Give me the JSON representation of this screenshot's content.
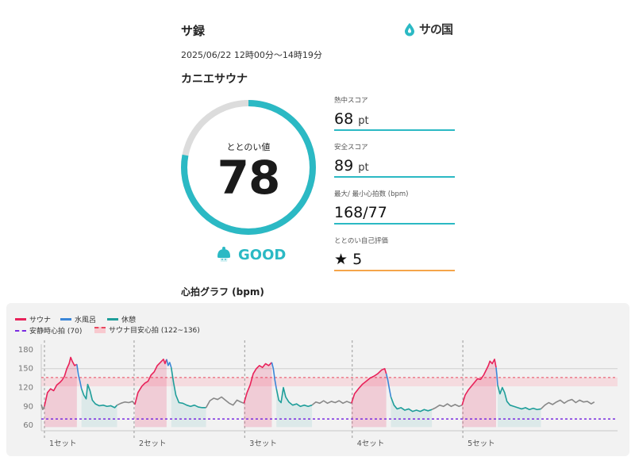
{
  "header": {
    "title": "サ録",
    "brand": "サの国",
    "session_time": "2025/06/22 12時00分〜14時19分",
    "facility": "カニエサウナ"
  },
  "score": {
    "caption": "ととのい値",
    "value": "78",
    "max": 100,
    "rating": "GOOD"
  },
  "stats": [
    {
      "label": "熱中スコア",
      "value": "68",
      "unit": "pt",
      "icon": ""
    },
    {
      "label": "安全スコア",
      "value": "89",
      "unit": "pt",
      "icon": ""
    },
    {
      "label": "最大/ 最小心拍数 (bpm)",
      "value": "168/77",
      "unit": "",
      "icon": ""
    },
    {
      "label": "ととのい自己評価",
      "value": "5",
      "unit": "",
      "icon": "★"
    }
  ],
  "graph": {
    "title": "心拍グラフ (bpm)",
    "legend": {
      "sauna": "サウナ",
      "cold_bath": "水風呂",
      "rest": "休憩",
      "resting_hr": "安静時心拍 (70)",
      "sauna_target": "サウナ目安心拍 (122~136)"
    }
  },
  "colors": {
    "accent": "#2bb9c4",
    "sauna": "#e8225a",
    "cold_bath": "#3a86d8",
    "rest": "#1f9e9a",
    "other": "#888888",
    "resting_line": "#7a2be0",
    "target_band": "#f8c9cf",
    "self_eval_line": "#f5a54a"
  },
  "chart_data": {
    "type": "line",
    "ylim": [
      55,
      185
    ],
    "yticks": [
      60,
      90,
      120,
      150,
      180
    ],
    "xmax": 745,
    "resting_hr": 70,
    "target_band": [
      122,
      136
    ],
    "ref_line": 150,
    "sets": [
      {
        "label": "1セット",
        "start": 0
      },
      {
        "label": "2セット",
        "start": 120
      },
      {
        "label": "3セット",
        "start": 263
      },
      {
        "label": "4セット",
        "start": 402
      },
      {
        "label": "5セット",
        "start": 545
      }
    ],
    "segments": [
      {
        "phase": "other",
        "points": [
          [
            0,
            93
          ],
          [
            2,
            85
          ],
          [
            4,
            90
          ]
        ]
      },
      {
        "phase": "sauna",
        "points": [
          [
            4,
            90
          ],
          [
            8,
            112
          ],
          [
            12,
            118
          ],
          [
            16,
            115
          ],
          [
            20,
            124
          ],
          [
            24,
            128
          ],
          [
            27,
            132
          ],
          [
            30,
            138
          ],
          [
            33,
            150
          ],
          [
            36,
            158
          ],
          [
            38,
            168
          ],
          [
            40,
            162
          ],
          [
            43,
            155
          ],
          [
            46,
            157
          ]
        ]
      },
      {
        "phase": "cold_bath",
        "points": [
          [
            46,
            157
          ],
          [
            48,
            140
          ],
          [
            50,
            130
          ],
          [
            52,
            118
          ]
        ]
      },
      {
        "phase": "rest",
        "points": [
          [
            52,
            118
          ],
          [
            55,
            108
          ],
          [
            58,
            102
          ],
          [
            60,
            125
          ],
          [
            63,
            115
          ],
          [
            66,
            100
          ],
          [
            70,
            94
          ],
          [
            75,
            91
          ],
          [
            80,
            92
          ],
          [
            85,
            90
          ],
          [
            90,
            91
          ],
          [
            95,
            88
          ],
          [
            98,
            92
          ]
        ]
      },
      {
        "phase": "other",
        "points": [
          [
            98,
            92
          ],
          [
            103,
            95
          ],
          [
            108,
            97
          ],
          [
            113,
            96
          ],
          [
            118,
            98
          ],
          [
            121,
            93
          ]
        ]
      },
      {
        "phase": "sauna",
        "points": [
          [
            121,
            93
          ],
          [
            125,
            112
          ],
          [
            130,
            122
          ],
          [
            134,
            127
          ],
          [
            138,
            130
          ],
          [
            142,
            140
          ],
          [
            146,
            145
          ],
          [
            150,
            155
          ],
          [
            154,
            160
          ],
          [
            158,
            165
          ],
          [
            160,
            158
          ],
          [
            162,
            165
          ]
        ]
      },
      {
        "phase": "cold_bath",
        "points": [
          [
            162,
            165
          ],
          [
            164,
            155
          ],
          [
            166,
            160
          ],
          [
            168,
            152
          ]
        ]
      },
      {
        "phase": "rest",
        "points": [
          [
            168,
            152
          ],
          [
            171,
            128
          ],
          [
            174,
            108
          ],
          [
            178,
            96
          ],
          [
            183,
            95
          ],
          [
            188,
            92
          ],
          [
            193,
            90
          ],
          [
            198,
            92
          ],
          [
            203,
            89
          ],
          [
            208,
            88
          ],
          [
            213,
            88
          ]
        ]
      },
      {
        "phase": "other",
        "points": [
          [
            213,
            88
          ],
          [
            218,
            99
          ],
          [
            223,
            103
          ],
          [
            228,
            101
          ],
          [
            233,
            105
          ],
          [
            238,
            100
          ],
          [
            243,
            95
          ],
          [
            248,
            92
          ],
          [
            253,
            100
          ],
          [
            258,
            97
          ],
          [
            262,
            95
          ]
        ]
      },
      {
        "phase": "sauna",
        "points": [
          [
            262,
            95
          ],
          [
            266,
            112
          ],
          [
            270,
            124
          ],
          [
            274,
            142
          ],
          [
            278,
            150
          ],
          [
            282,
            155
          ],
          [
            286,
            152
          ],
          [
            290,
            158
          ],
          [
            294,
            155
          ],
          [
            298,
            160
          ]
        ]
      },
      {
        "phase": "cold_bath",
        "points": [
          [
            298,
            160
          ],
          [
            300,
            150
          ],
          [
            302,
            132
          ],
          [
            304,
            118
          ]
        ]
      },
      {
        "phase": "rest",
        "points": [
          [
            304,
            118
          ],
          [
            307,
            100
          ],
          [
            310,
            96
          ],
          [
            313,
            120
          ],
          [
            316,
            105
          ],
          [
            320,
            97
          ],
          [
            325,
            92
          ],
          [
            330,
            94
          ],
          [
            335,
            90
          ],
          [
            340,
            92
          ],
          [
            345,
            90
          ],
          [
            350,
            92
          ]
        ]
      },
      {
        "phase": "other",
        "points": [
          [
            350,
            92
          ],
          [
            355,
            97
          ],
          [
            360,
            95
          ],
          [
            365,
            99
          ],
          [
            370,
            95
          ],
          [
            375,
            98
          ],
          [
            380,
            96
          ],
          [
            385,
            99
          ],
          [
            390,
            95
          ],
          [
            395,
            98
          ],
          [
            401,
            95
          ]
        ]
      },
      {
        "phase": "sauna",
        "points": [
          [
            401,
            95
          ],
          [
            405,
            110
          ],
          [
            410,
            118
          ],
          [
            415,
            125
          ],
          [
            420,
            130
          ],
          [
            425,
            135
          ],
          [
            430,
            138
          ],
          [
            435,
            142
          ],
          [
            440,
            148
          ],
          [
            444,
            150
          ],
          [
            446,
            142
          ]
        ]
      },
      {
        "phase": "cold_bath",
        "points": [
          [
            446,
            142
          ],
          [
            448,
            132
          ],
          [
            450,
            118
          ],
          [
            452,
            105
          ]
        ]
      },
      {
        "phase": "rest",
        "points": [
          [
            452,
            105
          ],
          [
            456,
            92
          ],
          [
            460,
            86
          ],
          [
            465,
            88
          ],
          [
            470,
            84
          ],
          [
            475,
            86
          ],
          [
            480,
            82
          ],
          [
            485,
            84
          ],
          [
            490,
            82
          ],
          [
            495,
            85
          ],
          [
            500,
            83
          ],
          [
            505,
            85
          ]
        ]
      },
      {
        "phase": "other",
        "points": [
          [
            505,
            85
          ],
          [
            510,
            88
          ],
          [
            515,
            92
          ],
          [
            520,
            90
          ],
          [
            525,
            94
          ],
          [
            530,
            90
          ],
          [
            535,
            93
          ],
          [
            540,
            90
          ],
          [
            544,
            92
          ]
        ]
      },
      {
        "phase": "sauna",
        "points": [
          [
            544,
            92
          ],
          [
            548,
            108
          ],
          [
            552,
            116
          ],
          [
            556,
            122
          ],
          [
            560,
            128
          ],
          [
            564,
            134
          ],
          [
            568,
            133
          ],
          [
            572,
            140
          ],
          [
            576,
            150
          ],
          [
            578,
            155
          ],
          [
            580,
            162
          ],
          [
            583,
            158
          ],
          [
            586,
            165
          ],
          [
            588,
            152
          ]
        ]
      },
      {
        "phase": "cold_bath",
        "points": [
          [
            588,
            152
          ],
          [
            589,
            140
          ],
          [
            590,
            124
          ]
        ]
      },
      {
        "phase": "rest",
        "points": [
          [
            590,
            124
          ],
          [
            593,
            110
          ],
          [
            596,
            120
          ],
          [
            599,
            112
          ],
          [
            602,
            98
          ],
          [
            606,
            92
          ],
          [
            611,
            90
          ],
          [
            616,
            88
          ],
          [
            621,
            86
          ],
          [
            626,
            88
          ],
          [
            631,
            85
          ],
          [
            636,
            87
          ],
          [
            641,
            85
          ],
          [
            646,
            86
          ]
        ]
      },
      {
        "phase": "other",
        "points": [
          [
            646,
            86
          ],
          [
            651,
            92
          ],
          [
            656,
            96
          ],
          [
            661,
            93
          ],
          [
            666,
            97
          ],
          [
            671,
            100
          ],
          [
            676,
            95
          ],
          [
            681,
            99
          ],
          [
            686,
            101
          ],
          [
            691,
            96
          ],
          [
            696,
            100
          ],
          [
            701,
            97
          ],
          [
            706,
            98
          ],
          [
            711,
            94
          ],
          [
            715,
            97
          ]
        ]
      }
    ]
  }
}
